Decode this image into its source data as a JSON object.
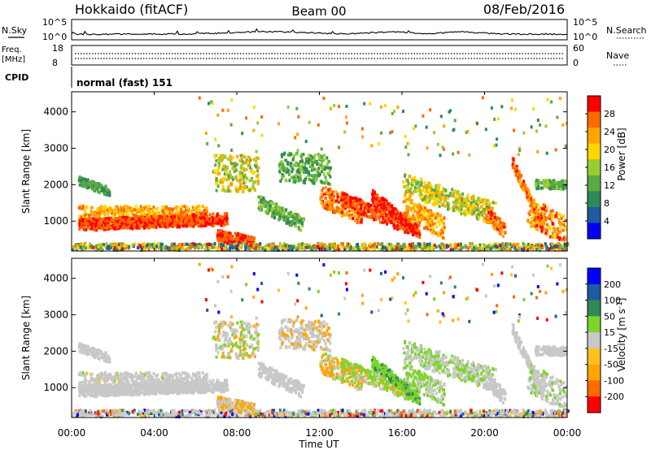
{
  "header": {
    "station": "Hokkaido (fitACF)",
    "beam": "Beam 00",
    "date": "08/Feb/2016"
  },
  "panels": {
    "nsky": {
      "label": "N.Sky",
      "right_label": "N.Search",
      "ticks_left": [
        "10^5",
        "10^0"
      ],
      "ticks_right": [
        "10^5",
        "10^0"
      ]
    },
    "freq": {
      "label_line1": "Freq.",
      "label_line2": "[MHz]",
      "ticks_left": [
        "18",
        "8"
      ],
      "right_label": "Nave",
      "ticks_right": [
        "60",
        "0"
      ]
    },
    "cpid": {
      "label": "CPID",
      "value": "normal (fast) 151"
    }
  },
  "x_axis": {
    "label": "Time UT",
    "ticks": [
      "00:00",
      "04:00",
      "08:00",
      "12:00",
      "16:00",
      "20:00",
      "00:00"
    ]
  },
  "colors": {
    "power": [
      "#0000ff",
      "#1e5aa0",
      "#2e8b57",
      "#5aaa46",
      "#9acd32",
      "#ffd700",
      "#ffa500",
      "#ff6a00",
      "#ff0000"
    ],
    "velocity": [
      "#ff0000",
      "#ff6a00",
      "#ffa500",
      "#ffc020",
      "#c8c8c8",
      "#7cd628",
      "#2e8b57",
      "#1e5aa0",
      "#0000ff"
    ]
  },
  "chart_data": [
    {
      "type": "heatmap",
      "name": "power",
      "ylabel": "Slant Range [km]",
      "y_ticks": [
        "1000",
        "2000",
        "3000",
        "4000"
      ],
      "ylim": [
        180,
        4550
      ],
      "colorbar_label": "Power [dB]",
      "colorbar_ticks": [
        "4",
        "8",
        "12",
        "16",
        "20",
        "24",
        "28"
      ],
      "clim": [
        0,
        30
      ]
    },
    {
      "type": "heatmap",
      "name": "velocity",
      "ylabel": "Slant Range [km]",
      "y_ticks": [
        "1000",
        "2000",
        "3000",
        "4000"
      ],
      "ylim": [
        180,
        4550
      ],
      "colorbar_label": "Velocity [m s^-1]",
      "colorbar_ticks": [
        "200",
        "100",
        "50",
        "15",
        "-15",
        "-50",
        "-100",
        "-200"
      ],
      "clim": [
        -250,
        250
      ]
    }
  ]
}
